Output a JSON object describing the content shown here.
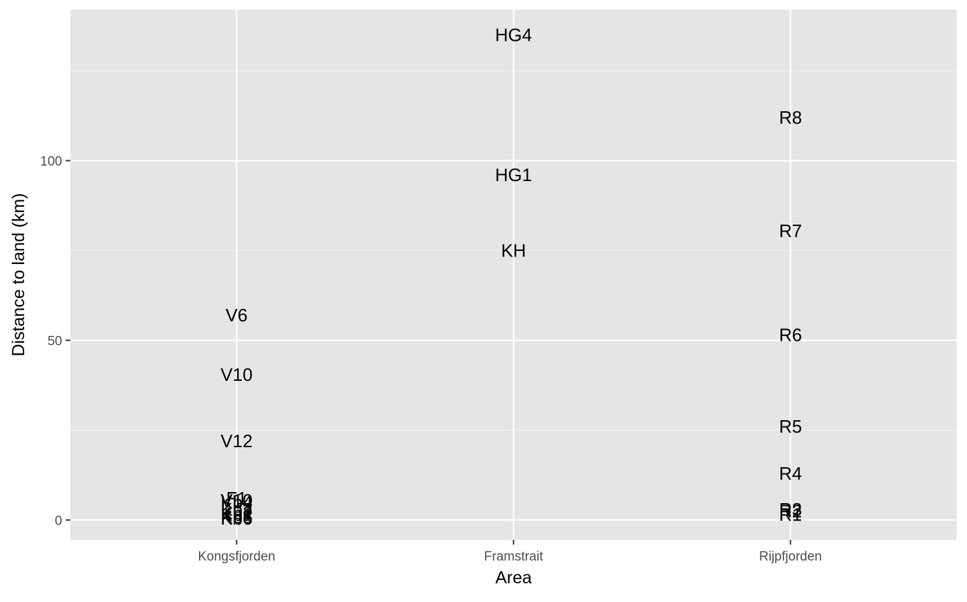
{
  "chart_data": {
    "type": "scatter",
    "xlabel": "Area",
    "ylabel": "Distance to land (km)",
    "categories": [
      "Kongsfjorden",
      "Framstrait",
      "Rijpfjorden"
    ],
    "ylim": [
      -5.5,
      142
    ],
    "y_ticks": [
      0,
      50,
      100
    ],
    "grid": true,
    "points": [
      {
        "area": "Kongsfjorden",
        "label": "V6",
        "y": 57
      },
      {
        "area": "Kongsfjorden",
        "label": "V10",
        "y": 40.5
      },
      {
        "area": "Kongsfjorden",
        "label": "V12",
        "y": 22
      },
      {
        "area": "Kongsfjorden",
        "label": "F1",
        "y": 6
      },
      {
        "area": "Kongsfjorden",
        "label": "V10",
        "y": 5.5
      },
      {
        "area": "Kongsfjorden",
        "label": "Kb4",
        "y": 5
      },
      {
        "area": "Kongsfjorden",
        "label": "Kb3",
        "y": 3
      },
      {
        "area": "Kongsfjorden",
        "label": "Kb2",
        "y": 2
      },
      {
        "area": "Kongsfjorden",
        "label": "Kb1",
        "y": 1.5
      },
      {
        "area": "Kongsfjorden",
        "label": "Kb5",
        "y": 0.8
      },
      {
        "area": "Kongsfjorden",
        "label": "Kb6",
        "y": 0.5
      },
      {
        "area": "Framstrait",
        "label": "HG4",
        "y": 135
      },
      {
        "area": "Framstrait",
        "label": "HG1",
        "y": 96
      },
      {
        "area": "Framstrait",
        "label": "KH",
        "y": 75
      },
      {
        "area": "Rijpfjorden",
        "label": "R8",
        "y": 112
      },
      {
        "area": "Rijpfjorden",
        "label": "R7",
        "y": 80.5
      },
      {
        "area": "Rijpfjorden",
        "label": "R6",
        "y": 51.5
      },
      {
        "area": "Rijpfjorden",
        "label": "R5",
        "y": 26
      },
      {
        "area": "Rijpfjorden",
        "label": "R4",
        "y": 13
      },
      {
        "area": "Rijpfjorden",
        "label": "R3",
        "y": 3
      },
      {
        "area": "Rijpfjorden",
        "label": "R2",
        "y": 2.5
      },
      {
        "area": "Rijpfjorden",
        "label": "R1",
        "y": 1.5
      }
    ],
    "colors": {
      "panel_background": "#e5e5e5",
      "grid_major": "#ffffff",
      "grid_minor": "#f2f2f2",
      "tick_text": "#4d4d4d",
      "label_text": "#000000",
      "axis_tick": "#333333"
    }
  }
}
